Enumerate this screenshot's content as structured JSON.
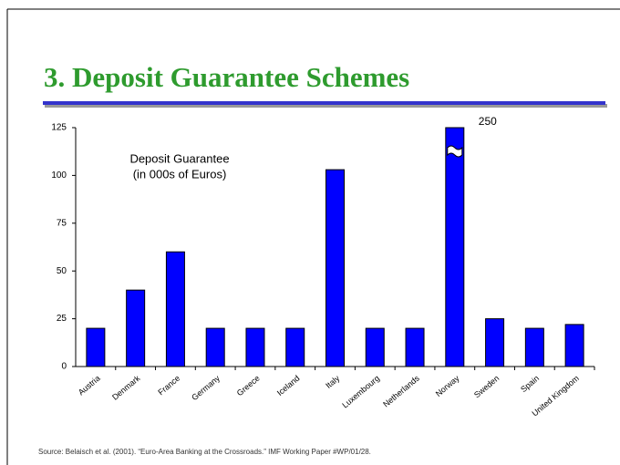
{
  "chart_data": {
    "type": "bar",
    "title": "3. Deposit Guarantee Schemes",
    "annotation": [
      "Deposit Guarantee",
      "(in 000s of Euros)"
    ],
    "source": "Source: Belaisch et al. (2001). “Euro-Area Banking at the Crossroads.” IMF Working Paper #WP/01/28.",
    "categories": [
      "Austria",
      "Denmark",
      "France",
      "Germany",
      "Greece",
      "Iceland",
      "Italy",
      "Luxembourg",
      "Netherlands",
      "Norway",
      "Sweden",
      "Spain",
      "United Kingdom"
    ],
    "values": [
      20,
      40,
      60,
      20,
      20,
      20,
      103,
      20,
      20,
      250,
      25,
      20,
      22
    ],
    "value_labels": [
      null,
      null,
      null,
      null,
      null,
      null,
      null,
      null,
      null,
      "250",
      null,
      null,
      null
    ],
    "color": "#0000ff",
    "ylim": [
      0,
      125
    ],
    "yticks": [
      0,
      25,
      50,
      75,
      100,
      125
    ]
  }
}
